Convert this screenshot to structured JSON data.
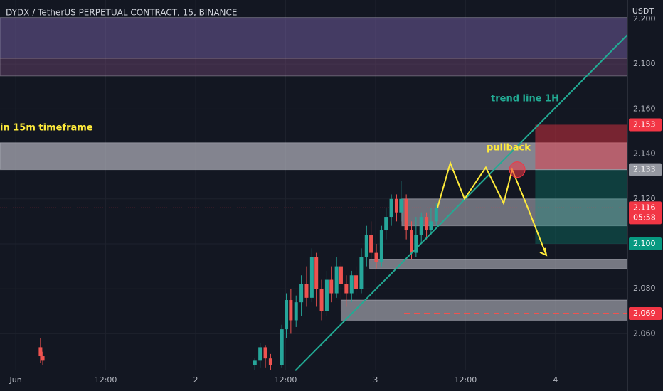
{
  "chart_data": {
    "type": "candlestick",
    "title": "DYDX / TetherUS PERPETUAL CONTRACT, 15, BINANCE",
    "currency": "USDT",
    "xlim": [
      -2.1,
      81.6
    ],
    "ylim": [
      2.044,
      2.2085
    ],
    "xticks": [
      {
        "value": 0,
        "label": "Jun"
      },
      {
        "value": 12,
        "label": "12:00"
      },
      {
        "value": 24,
        "label": "2"
      },
      {
        "value": 36,
        "label": "12:00"
      },
      {
        "value": 48,
        "label": "3"
      },
      {
        "value": 60,
        "label": "12:00"
      },
      {
        "value": 72,
        "label": "4"
      }
    ],
    "yticks": [
      {
        "value": 2.06,
        "label": "2.060"
      },
      {
        "value": 2.08,
        "label": "2.080"
      },
      {
        "value": 2.1,
        "label": "2.100"
      },
      {
        "value": 2.12,
        "label": "2.120"
      },
      {
        "value": 2.14,
        "label": "2.140"
      },
      {
        "value": 2.16,
        "label": "2.160"
      },
      {
        "value": 2.18,
        "label": "2.180"
      },
      {
        "value": 2.2,
        "label": "2.200"
      }
    ],
    "up_color": "#26a69a",
    "down_color": "#ef5350",
    "candles": {
      "x": [
        3.3,
        3.6,
        31.9,
        32.6,
        33.3,
        34.0,
        35.5,
        36.1,
        36.7,
        37.4,
        38.1,
        38.8,
        39.5,
        40.1,
        40.8,
        41.5,
        42.1,
        42.8,
        43.4,
        44.1,
        44.8,
        45.4,
        46.1,
        46.8,
        47.4,
        48.1,
        48.8,
        49.4,
        50.1,
        50.8,
        51.4,
        52.1,
        52.8,
        53.4,
        54.1,
        54.8,
        55.4,
        56.1
      ],
      "open": [
        2.054,
        2.05,
        2.046,
        2.048,
        2.054,
        2.049,
        2.046,
        2.062,
        2.075,
        2.066,
        2.074,
        2.082,
        2.076,
        2.094,
        2.08,
        2.07,
        2.084,
        2.078,
        2.09,
        2.082,
        2.078,
        2.086,
        2.08,
        2.094,
        2.104,
        2.096,
        2.092,
        2.106,
        2.112,
        2.12,
        2.114,
        2.12,
        2.106,
        2.096,
        2.104,
        2.112,
        2.106,
        2.11
      ],
      "high": [
        2.058,
        2.052,
        2.049,
        2.056,
        2.055,
        2.051,
        2.064,
        2.078,
        2.08,
        2.077,
        2.086,
        2.09,
        2.098,
        2.096,
        2.084,
        2.088,
        2.09,
        2.094,
        2.092,
        2.086,
        2.088,
        2.09,
        2.098,
        2.108,
        2.11,
        2.1,
        2.108,
        2.116,
        2.122,
        2.122,
        2.128,
        2.122,
        2.11,
        2.112,
        2.114,
        2.114,
        2.116,
        2.118
      ],
      "low": [
        2.047,
        2.046,
        2.044,
        2.045,
        2.045,
        2.044,
        2.045,
        2.058,
        2.06,
        2.063,
        2.068,
        2.072,
        2.074,
        2.072,
        2.066,
        2.068,
        2.074,
        2.076,
        2.07,
        2.072,
        2.074,
        2.077,
        2.078,
        2.09,
        2.092,
        2.089,
        2.09,
        2.102,
        2.108,
        2.11,
        2.11,
        2.102,
        2.093,
        2.094,
        2.1,
        2.102,
        2.104,
        2.108
      ],
      "close": [
        2.05,
        2.048,
        2.048,
        2.054,
        2.049,
        2.046,
        2.062,
        2.075,
        2.066,
        2.074,
        2.082,
        2.076,
        2.094,
        2.08,
        2.07,
        2.084,
        2.078,
        2.09,
        2.082,
        2.078,
        2.086,
        2.08,
        2.094,
        2.104,
        2.096,
        2.092,
        2.106,
        2.112,
        2.12,
        2.114,
        2.12,
        2.106,
        2.096,
        2.104,
        2.112,
        2.106,
        2.11,
        2.116
      ]
    },
    "zones": [
      {
        "from": -2.1,
        "low": 2.1826,
        "high": 2.2007,
        "color": "rgba(149,117,205,0.38)"
      },
      {
        "from": -2.1,
        "low": 2.1747,
        "high": 2.1826,
        "color": "rgba(130,80,130,0.38)"
      },
      {
        "from": -2.1,
        "low": 2.133,
        "high": 2.145,
        "color": "rgba(200,200,210,0.62)"
      },
      {
        "from": 51.5,
        "low": 2.108,
        "high": 2.12,
        "color": "rgba(200,200,210,0.5)"
      },
      {
        "from": 47.2,
        "low": 2.089,
        "high": 2.093,
        "color": "rgba(200,200,210,0.55)"
      },
      {
        "from": 43.4,
        "low": 2.066,
        "high": 2.075,
        "color": "rgba(200,200,210,0.55)"
      }
    ],
    "position": {
      "from": 69.3,
      "stop": 2.153,
      "entry": 2.133,
      "target": 2.1,
      "stop_color": "rgba(242,54,69,0.45)",
      "target_color": "rgba(8,153,129,0.3)"
    },
    "trend_line": {
      "points": [
        [
          37.3,
          2.0436
        ],
        [
          81.6,
          2.193
        ]
      ],
      "color": "#22ab94"
    },
    "path_projection": {
      "points": [
        [
          56.26,
          2.116
        ],
        [
          57.97,
          2.136
        ],
        [
          59.87,
          2.12
        ],
        [
          62.71,
          2.134
        ],
        [
          65.09,
          2.118
        ],
        [
          66.22,
          2.133
        ],
        [
          68.31,
          2.116
        ],
        [
          70.78,
          2.095
        ]
      ],
      "color": "#ffeb3b"
    },
    "pullback_marker": {
      "x": 66.9,
      "price": 2.133
    },
    "level_line": {
      "from": 51.8,
      "price": 2.069,
      "color": "#ef5350"
    },
    "current_price": 2.116,
    "countdown": "05:58",
    "annotations": [
      {
        "text": "in 15m timeframe",
        "color": "#ffeb3b"
      },
      {
        "text": "pullback",
        "color": "#ffeb3b"
      },
      {
        "text": "trend line 1H",
        "color": "#22ab94"
      }
    ],
    "price_tags": [
      {
        "price": 2.153,
        "color": "#f23645"
      },
      {
        "price": 2.133,
        "color": "#9598a1"
      },
      {
        "price": 2.116,
        "color": "#f23645"
      },
      {
        "price": {
          "value": 2.1,
          "label": "2.100"
        },
        "color": "#089981"
      },
      {
        "price": 2.069,
        "color": "#f23645"
      }
    ]
  }
}
